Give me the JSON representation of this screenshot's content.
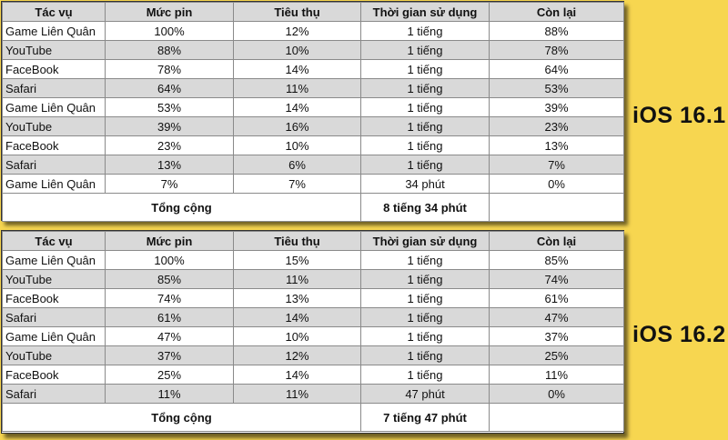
{
  "headers": [
    "Tác vụ",
    "Mức pin",
    "Tiêu thụ",
    "Thời gian sử dụng",
    "Còn lại"
  ],
  "total_label": "Tổng cộng",
  "ios161": {
    "label": "iOS 16.1",
    "rows": [
      [
        "Game Liên Quân",
        "100%",
        "12%",
        "1 tiếng",
        "88%"
      ],
      [
        "YouTube",
        "88%",
        "10%",
        "1 tiếng",
        "78%"
      ],
      [
        "FaceBook",
        "78%",
        "14%",
        "1 tiếng",
        "64%"
      ],
      [
        "Safari",
        "64%",
        "11%",
        "1 tiếng",
        "53%"
      ],
      [
        "Game Liên Quân",
        "53%",
        "14%",
        "1 tiếng",
        "39%"
      ],
      [
        "YouTube",
        "39%",
        "16%",
        "1 tiếng",
        "23%"
      ],
      [
        "FaceBook",
        "23%",
        "10%",
        "1 tiếng",
        "13%"
      ],
      [
        "Safari",
        "13%",
        "6%",
        "1 tiếng",
        "7%"
      ],
      [
        "Game Liên Quân",
        "7%",
        "7%",
        "34 phút",
        "0%"
      ]
    ],
    "total_time": "8 tiếng 34 phút"
  },
  "ios162": {
    "label": "iOS 16.2",
    "rows": [
      [
        "Game Liên Quân",
        "100%",
        "15%",
        "1 tiếng",
        "85%"
      ],
      [
        "YouTube",
        "85%",
        "11%",
        "1 tiếng",
        "74%"
      ],
      [
        "FaceBook",
        "74%",
        "13%",
        "1 tiếng",
        "61%"
      ],
      [
        "Safari",
        "61%",
        "14%",
        "1 tiếng",
        "47%"
      ],
      [
        "Game Liên Quân",
        "47%",
        "10%",
        "1 tiếng",
        "37%"
      ],
      [
        "YouTube",
        "37%",
        "12%",
        "1 tiếng",
        "25%"
      ],
      [
        "FaceBook",
        "25%",
        "14%",
        "1 tiếng",
        "11%"
      ],
      [
        "Safari",
        "11%",
        "11%",
        "47 phút",
        "0%"
      ]
    ],
    "total_time": "7 tiếng 47 phút"
  },
  "colors": {
    "background": "#f7d650",
    "header_row": "#d9d9d9",
    "stripe_row": "#d9d9d9"
  }
}
